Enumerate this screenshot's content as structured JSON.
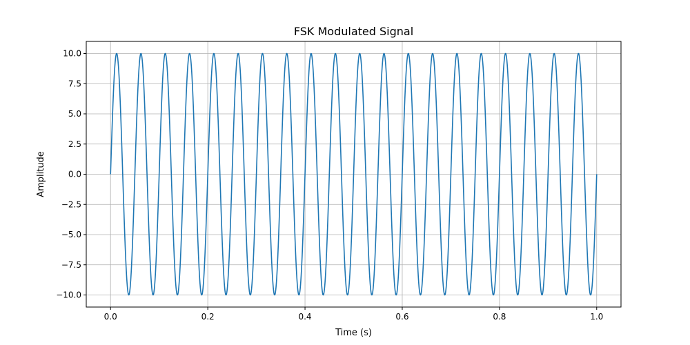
{
  "chart_data": {
    "type": "line",
    "title": "FSK Modulated Signal",
    "xlabel": "Time (s)",
    "ylabel": "Amplitude",
    "xlim": [
      -0.05,
      1.05
    ],
    "ylim": [
      -11.0,
      11.0
    ],
    "grid": true,
    "line_color": "#1f77b4",
    "x_ticks": [
      0.0,
      0.2,
      0.4,
      0.6,
      0.8,
      1.0
    ],
    "x_tick_labels": [
      "0.0",
      "0.2",
      "0.4",
      "0.6",
      "0.8",
      "1.0"
    ],
    "y_ticks": [
      -10.0,
      -7.5,
      -5.0,
      -2.5,
      0.0,
      2.5,
      5.0,
      7.5,
      10.0
    ],
    "y_tick_labels": [
      "−10.0",
      "−7.5",
      "−5.0",
      "−2.5",
      "0.0",
      "2.5",
      "5.0",
      "7.5",
      "10.0"
    ],
    "series": [
      {
        "amplitude": 10,
        "frequency_hz": 20,
        "x_start": 0.0,
        "x_end": 1.0
      }
    ]
  }
}
